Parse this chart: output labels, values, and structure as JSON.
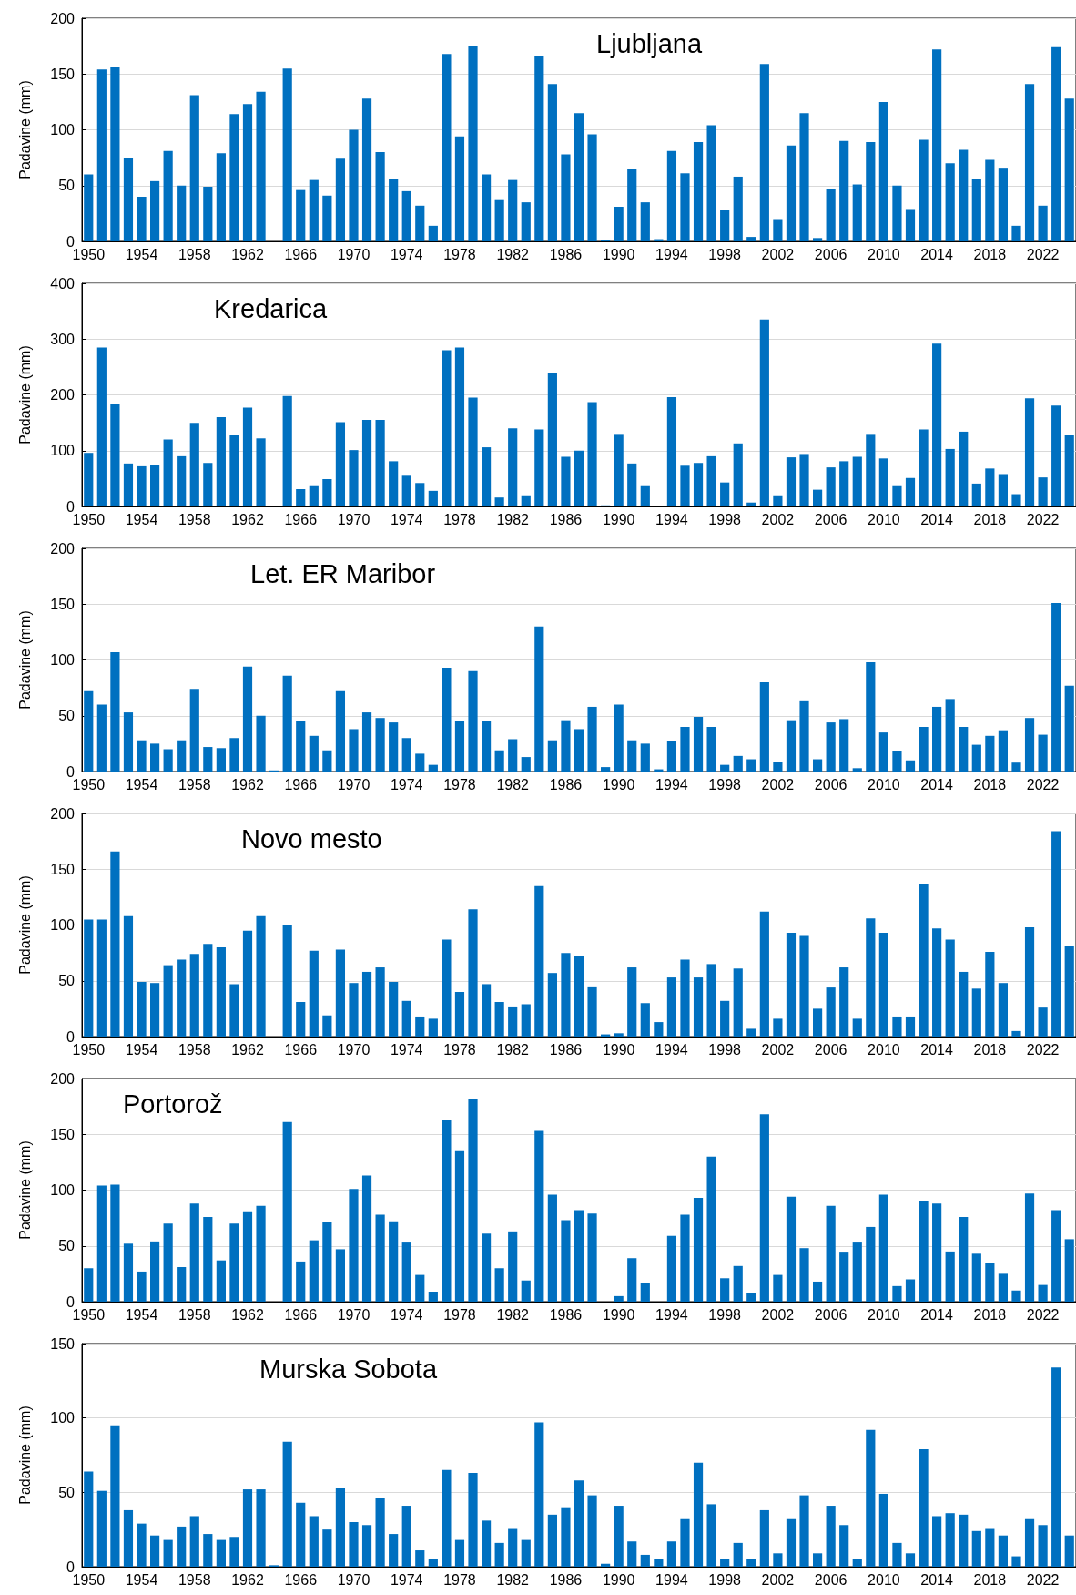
{
  "chart_data": [
    {
      "type": "bar",
      "title": "Ljubljana",
      "ylabel": "Padavine (mm)",
      "ylim": [
        0,
        200
      ],
      "yticks": [
        0,
        50,
        100,
        150,
        200
      ],
      "grid": "y",
      "color": "#0070c0",
      "categories": [
        "1950",
        null,
        null,
        null,
        "1954",
        null,
        null,
        null,
        "1958",
        null,
        null,
        null,
        "1962",
        null,
        null,
        null,
        "1966",
        null,
        null,
        null,
        "1970",
        null,
        null,
        null,
        "1974",
        null,
        null,
        null,
        "1978",
        null,
        null,
        null,
        "1982",
        null,
        null,
        null,
        "1986",
        null,
        null,
        null,
        "1990",
        null,
        null,
        null,
        "1994",
        null,
        null,
        null,
        "1998",
        null,
        null,
        null,
        "2002",
        null,
        null,
        null,
        "2006",
        null,
        null,
        null,
        "2010",
        null,
        null,
        null,
        "2014",
        null,
        null,
        null,
        "2018",
        null,
        null,
        null,
        "2022",
        null,
        null
      ],
      "values": [
        60,
        154,
        156,
        75,
        40,
        54,
        81,
        50,
        131,
        49,
        79,
        114,
        123,
        134,
        null,
        155,
        46,
        55,
        41,
        74,
        100,
        128,
        80,
        56,
        45,
        32,
        14,
        168,
        94,
        175,
        60,
        37,
        55,
        35,
        166,
        141,
        78,
        115,
        96,
        1,
        31,
        65,
        35,
        2,
        81,
        61,
        89,
        104,
        28,
        58,
        4,
        159,
        20,
        86,
        115,
        3,
        47,
        90,
        51,
        89,
        125,
        50,
        29,
        91,
        172,
        70,
        82,
        56,
        73,
        66,
        14,
        141,
        32,
        174,
        128
      ]
    },
    {
      "type": "bar",
      "title": "Kredarica",
      "ylabel": "Padavine (mm)",
      "ylim": [
        0,
        400
      ],
      "yticks": [
        0,
        100,
        200,
        300,
        400
      ],
      "grid": "y",
      "color": "#0070c0",
      "categories": [
        "1950",
        null,
        null,
        null,
        "1954",
        null,
        null,
        null,
        "1958",
        null,
        null,
        null,
        "1962",
        null,
        null,
        null,
        "1966",
        null,
        null,
        null,
        "1970",
        null,
        null,
        null,
        "1974",
        null,
        null,
        null,
        "1978",
        null,
        null,
        null,
        "1982",
        null,
        null,
        null,
        "1986",
        null,
        null,
        null,
        "1990",
        null,
        null,
        null,
        "1994",
        null,
        null,
        null,
        "1998",
        null,
        null,
        null,
        "2002",
        null,
        null,
        null,
        "2006",
        null,
        null,
        null,
        "2010",
        null,
        null,
        null,
        "2014",
        null,
        null,
        null,
        "2018",
        null,
        null,
        null,
        "2022",
        null,
        null
      ],
      "values": [
        96,
        285,
        184,
        77,
        72,
        75,
        120,
        90,
        150,
        78,
        160,
        129,
        177,
        122,
        null,
        198,
        31,
        38,
        49,
        151,
        101,
        155,
        155,
        81,
        55,
        42,
        28,
        280,
        285,
        195,
        106,
        16,
        140,
        20,
        138,
        239,
        89,
        100,
        187,
        2,
        130,
        77,
        38,
        1,
        196,
        73,
        78,
        90,
        43,
        113,
        7,
        335,
        20,
        88,
        94,
        30,
        70,
        81,
        89,
        130,
        86,
        38,
        51,
        138,
        292,
        103,
        134,
        41,
        68,
        58,
        22,
        194,
        52,
        181,
        128
      ]
    },
    {
      "type": "bar",
      "title": "Let. ER Maribor",
      "ylabel": "Padavine (mm)",
      "ylim": [
        0,
        200
      ],
      "yticks": [
        0,
        50,
        100,
        150,
        200
      ],
      "grid": "y",
      "color": "#0070c0",
      "categories": [
        "1950",
        null,
        null,
        null,
        "1954",
        null,
        null,
        null,
        "1958",
        null,
        null,
        null,
        "1962",
        null,
        null,
        null,
        "1966",
        null,
        null,
        null,
        "1970",
        null,
        null,
        null,
        "1974",
        null,
        null,
        null,
        "1978",
        null,
        null,
        null,
        "1982",
        null,
        null,
        null,
        "1986",
        null,
        null,
        null,
        "1990",
        null,
        null,
        null,
        "1994",
        null,
        null,
        null,
        "1998",
        null,
        null,
        null,
        "2002",
        null,
        null,
        null,
        "2006",
        null,
        null,
        null,
        "2010",
        null,
        null,
        null,
        "2014",
        null,
        null,
        null,
        "2018",
        null,
        null,
        null,
        "2022",
        null,
        null
      ],
      "values": [
        72,
        60,
        107,
        53,
        28,
        25,
        20,
        28,
        74,
        22,
        21,
        30,
        94,
        50,
        1,
        86,
        45,
        32,
        19,
        72,
        38,
        53,
        48,
        44,
        30,
        16,
        6,
        93,
        45,
        90,
        45,
        19,
        29,
        13,
        130,
        28,
        46,
        38,
        58,
        4,
        60,
        28,
        25,
        2,
        27,
        40,
        49,
        40,
        6,
        14,
        11,
        80,
        9,
        46,
        63,
        11,
        44,
        47,
        3,
        98,
        35,
        18,
        10,
        40,
        58,
        65,
        40,
        24,
        32,
        37,
        8,
        48,
        33,
        151,
        77
      ]
    },
    {
      "type": "bar",
      "title": "Novo mesto",
      "ylabel": "Padavine (mm)",
      "ylim": [
        0,
        200
      ],
      "yticks": [
        0,
        50,
        100,
        150,
        200
      ],
      "grid": "y",
      "color": "#0070c0",
      "categories": [
        "1950",
        null,
        null,
        null,
        "1954",
        null,
        null,
        null,
        "1958",
        null,
        null,
        null,
        "1962",
        null,
        null,
        null,
        "1966",
        null,
        null,
        null,
        "1970",
        null,
        null,
        null,
        "1974",
        null,
        null,
        null,
        "1978",
        null,
        null,
        null,
        "1982",
        null,
        null,
        null,
        "1986",
        null,
        null,
        null,
        "1990",
        null,
        null,
        null,
        "1994",
        null,
        null,
        null,
        "1998",
        null,
        null,
        null,
        "2002",
        null,
        null,
        null,
        "2006",
        null,
        null,
        null,
        "2010",
        null,
        null,
        null,
        "2014",
        null,
        null,
        null,
        "2018",
        null,
        null,
        null,
        "2022",
        null,
        null
      ],
      "values": [
        105,
        105,
        166,
        108,
        49,
        48,
        64,
        69,
        74,
        83,
        80,
        47,
        95,
        108,
        null,
        100,
        31,
        77,
        19,
        78,
        48,
        58,
        62,
        49,
        32,
        18,
        16,
        87,
        40,
        114,
        47,
        31,
        27,
        29,
        135,
        57,
        75,
        72,
        45,
        2,
        3,
        62,
        30,
        13,
        53,
        69,
        53,
        65,
        32,
        61,
        7,
        112,
        16,
        93,
        91,
        25,
        44,
        62,
        16,
        106,
        93,
        18,
        18,
        137,
        97,
        87,
        58,
        43,
        76,
        48,
        5,
        98,
        26,
        184,
        81
      ]
    },
    {
      "type": "bar",
      "title": "Portorož",
      "ylabel": "Padavine (mm)",
      "ylim": [
        0,
        200
      ],
      "yticks": [
        0,
        50,
        100,
        150,
        200
      ],
      "grid": "y",
      "color": "#0070c0",
      "categories": [
        "1950",
        null,
        null,
        null,
        "1954",
        null,
        null,
        null,
        "1958",
        null,
        null,
        null,
        "1962",
        null,
        null,
        null,
        "1966",
        null,
        null,
        null,
        "1970",
        null,
        null,
        null,
        "1974",
        null,
        null,
        null,
        "1978",
        null,
        null,
        null,
        "1982",
        null,
        null,
        null,
        "1986",
        null,
        null,
        null,
        "1990",
        null,
        null,
        null,
        "1994",
        null,
        null,
        null,
        "1998",
        null,
        null,
        null,
        "2002",
        null,
        null,
        null,
        "2006",
        null,
        null,
        null,
        "2010",
        null,
        null,
        null,
        "2014",
        null,
        null,
        null,
        "2018",
        null,
        null,
        null,
        "2022",
        null,
        null
      ],
      "values": [
        30,
        104,
        105,
        52,
        27,
        54,
        70,
        31,
        88,
        76,
        37,
        70,
        81,
        86,
        null,
        161,
        36,
        55,
        71,
        47,
        101,
        113,
        78,
        72,
        53,
        24,
        9,
        163,
        135,
        182,
        61,
        30,
        63,
        19,
        153,
        96,
        73,
        82,
        79,
        null,
        5,
        39,
        17,
        null,
        59,
        78,
        93,
        130,
        21,
        32,
        8,
        168,
        24,
        94,
        48,
        18,
        86,
        44,
        53,
        67,
        96,
        14,
        20,
        90,
        88,
        45,
        76,
        43,
        35,
        25,
        10,
        97,
        15,
        82,
        56
      ]
    },
    {
      "type": "bar",
      "title": "Murska Sobota",
      "ylabel": "Padavine (mm)",
      "ylim": [
        0,
        150
      ],
      "yticks": [
        0,
        50,
        100,
        150
      ],
      "grid": "y",
      "color": "#0070c0",
      "categories": [
        "1950",
        null,
        null,
        null,
        "1954",
        null,
        null,
        null,
        "1958",
        null,
        null,
        null,
        "1962",
        null,
        null,
        null,
        "1966",
        null,
        null,
        null,
        "1970",
        null,
        null,
        null,
        "1974",
        null,
        null,
        null,
        "1978",
        null,
        null,
        null,
        "1982",
        null,
        null,
        null,
        "1986",
        null,
        null,
        null,
        "1990",
        null,
        null,
        null,
        "1994",
        null,
        null,
        null,
        "1998",
        null,
        null,
        null,
        "2002",
        null,
        null,
        null,
        "2006",
        null,
        null,
        null,
        "2010",
        null,
        null,
        null,
        "2014",
        null,
        null,
        null,
        "2018",
        null,
        null,
        null,
        "2022",
        null,
        null
      ],
      "values": [
        64,
        51,
        95,
        38,
        29,
        21,
        18,
        27,
        34,
        22,
        18,
        20,
        52,
        52,
        1,
        84,
        43,
        34,
        25,
        53,
        30,
        28,
        46,
        22,
        41,
        11,
        5,
        65,
        18,
        63,
        31,
        16,
        26,
        18,
        97,
        35,
        40,
        58,
        48,
        2,
        41,
        17,
        8,
        5,
        17,
        32,
        70,
        42,
        5,
        16,
        5,
        38,
        9,
        32,
        48,
        9,
        41,
        28,
        5,
        92,
        49,
        16,
        9,
        79,
        34,
        36,
        35,
        24,
        26,
        21,
        7,
        32,
        28,
        134,
        21
      ]
    }
  ]
}
